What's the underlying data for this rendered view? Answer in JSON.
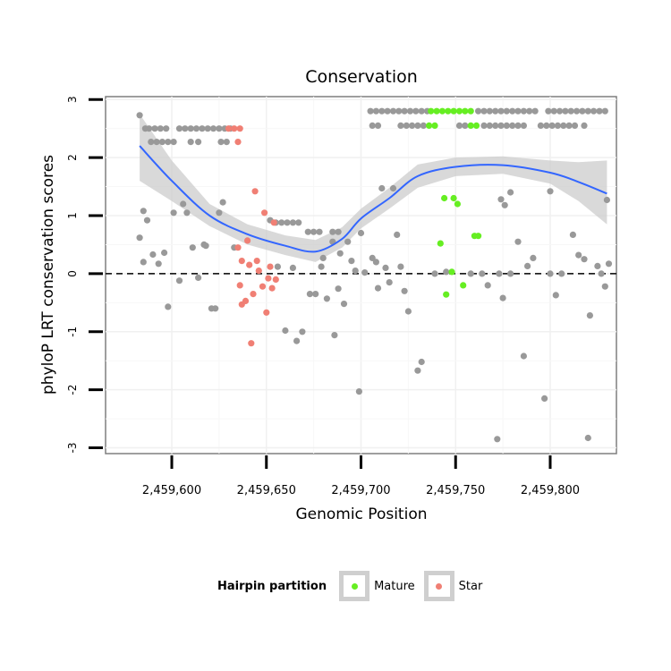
{
  "colors": {
    "other": "#999999",
    "mature": "#66ee22",
    "star": "#f07f74",
    "smooth": "#3366ff",
    "band": "#cccccc"
  },
  "chart_data": {
    "type": "scatter",
    "title": "Conservation",
    "xlabel": "Genomic Position",
    "ylabel": "phyloP LRT conservation scores",
    "xlim": [
      2459565,
      2459835
    ],
    "ylim": [
      -3.1,
      3.05
    ],
    "xticks": [
      2459600,
      2459650,
      2459700,
      2459750,
      2459800
    ],
    "xtick_labels": [
      "2,459,600",
      "2,459,650",
      "2,459,700",
      "2,459,750",
      "2,459,800"
    ],
    "yticks": [
      3,
      2,
      1,
      0,
      -1,
      -2,
      -3
    ],
    "ytick_labels": [
      "3",
      "2",
      "1",
      "0",
      "-1",
      "-2",
      "-3"
    ],
    "reference_line": 0,
    "legend": {
      "title": "Hairpin partition",
      "items": [
        {
          "label": "Mature",
          "color": "#66ee22"
        },
        {
          "label": "Star",
          "color": "#f07f74"
        }
      ]
    },
    "smooth": {
      "x": [
        2459583,
        2459600,
        2459620,
        2459640,
        2459660,
        2459676,
        2459690,
        2459700,
        2459715,
        2459730,
        2459750,
        2459775,
        2459800,
        2459815,
        2459830
      ],
      "y": [
        2.2,
        1.6,
        1.0,
        0.68,
        0.48,
        0.38,
        0.6,
        0.95,
        1.3,
        1.68,
        1.84,
        1.87,
        1.74,
        1.58,
        1.38
      ],
      "lower": [
        1.6,
        1.25,
        0.82,
        0.5,
        0.32,
        0.2,
        0.45,
        0.78,
        1.12,
        1.48,
        1.68,
        1.72,
        1.55,
        1.25,
        0.85
      ],
      "upper": [
        2.75,
        1.95,
        1.2,
        0.85,
        0.66,
        0.58,
        0.8,
        1.12,
        1.48,
        1.88,
        2.0,
        2.02,
        1.95,
        1.92,
        1.95
      ]
    },
    "series": [
      {
        "name": "Other",
        "points": [
          [
            2459583,
            2.73
          ],
          [
            2459586,
            2.5
          ],
          [
            2459588,
            2.5
          ],
          [
            2459591,
            2.5
          ],
          [
            2459594,
            2.5
          ],
          [
            2459597,
            2.5
          ],
          [
            2459589,
            2.27
          ],
          [
            2459592,
            2.27
          ],
          [
            2459595,
            2.27
          ],
          [
            2459598,
            2.27
          ],
          [
            2459601,
            2.27
          ],
          [
            2459604,
            2.5
          ],
          [
            2459607,
            2.5
          ],
          [
            2459610,
            2.5
          ],
          [
            2459613,
            2.5
          ],
          [
            2459616,
            2.5
          ],
          [
            2459619,
            2.5
          ],
          [
            2459622,
            2.5
          ],
          [
            2459625,
            2.5
          ],
          [
            2459628,
            2.5
          ],
          [
            2459631,
            2.5
          ],
          [
            2459610,
            2.27
          ],
          [
            2459614,
            2.27
          ],
          [
            2459626,
            2.27
          ],
          [
            2459629,
            2.27
          ],
          [
            2459705,
            2.8
          ],
          [
            2459708,
            2.8
          ],
          [
            2459711,
            2.8
          ],
          [
            2459714,
            2.8
          ],
          [
            2459717,
            2.8
          ],
          [
            2459720,
            2.8
          ],
          [
            2459723,
            2.8
          ],
          [
            2459726,
            2.8
          ],
          [
            2459729,
            2.8
          ],
          [
            2459732,
            2.8
          ],
          [
            2459735,
            2.8
          ],
          [
            2459762,
            2.8
          ],
          [
            2459765,
            2.8
          ],
          [
            2459768,
            2.8
          ],
          [
            2459771,
            2.8
          ],
          [
            2459774,
            2.8
          ],
          [
            2459777,
            2.8
          ],
          [
            2459780,
            2.8
          ],
          [
            2459783,
            2.8
          ],
          [
            2459786,
            2.8
          ],
          [
            2459789,
            2.8
          ],
          [
            2459792,
            2.8
          ],
          [
            2459799,
            2.8
          ],
          [
            2459802,
            2.8
          ],
          [
            2459805,
            2.8
          ],
          [
            2459808,
            2.8
          ],
          [
            2459811,
            2.8
          ],
          [
            2459814,
            2.8
          ],
          [
            2459817,
            2.8
          ],
          [
            2459820,
            2.8
          ],
          [
            2459823,
            2.8
          ],
          [
            2459826,
            2.8
          ],
          [
            2459829,
            2.8
          ],
          [
            2459706,
            2.55
          ],
          [
            2459709,
            2.55
          ],
          [
            2459721,
            2.55
          ],
          [
            2459724,
            2.55
          ],
          [
            2459727,
            2.55
          ],
          [
            2459730,
            2.55
          ],
          [
            2459733,
            2.55
          ],
          [
            2459752,
            2.55
          ],
          [
            2459755,
            2.55
          ],
          [
            2459765,
            2.55
          ],
          [
            2459768,
            2.55
          ],
          [
            2459771,
            2.55
          ],
          [
            2459774,
            2.55
          ],
          [
            2459777,
            2.55
          ],
          [
            2459780,
            2.55
          ],
          [
            2459783,
            2.55
          ],
          [
            2459786,
            2.55
          ],
          [
            2459795,
            2.55
          ],
          [
            2459798,
            2.55
          ],
          [
            2459801,
            2.55
          ],
          [
            2459804,
            2.55
          ],
          [
            2459807,
            2.55
          ],
          [
            2459810,
            2.55
          ],
          [
            2459813,
            2.55
          ],
          [
            2459818,
            2.55
          ],
          [
            2459583,
            0.62
          ],
          [
            2459585,
            1.08
          ],
          [
            2459587,
            0.92
          ],
          [
            2459585,
            0.2
          ],
          [
            2459590,
            0.33
          ],
          [
            2459593,
            0.17
          ],
          [
            2459596,
            0.36
          ],
          [
            2459598,
            -0.57
          ],
          [
            2459601,
            1.05
          ],
          [
            2459604,
            -0.12
          ],
          [
            2459606,
            1.2
          ],
          [
            2459608,
            1.05
          ],
          [
            2459611,
            0.45
          ],
          [
            2459614,
            -0.07
          ],
          [
            2459617,
            0.5
          ],
          [
            2459618,
            0.48
          ],
          [
            2459621,
            -0.6
          ],
          [
            2459623,
            -0.6
          ],
          [
            2459625,
            1.05
          ],
          [
            2459627,
            1.23
          ],
          [
            2459633,
            0.45
          ],
          [
            2459652,
            0.92
          ],
          [
            2459655,
            0.88
          ],
          [
            2459658,
            0.88
          ],
          [
            2459661,
            0.88
          ],
          [
            2459664,
            0.88
          ],
          [
            2459667,
            0.88
          ],
          [
            2459672,
            0.72
          ],
          [
            2459675,
            0.72
          ],
          [
            2459678,
            0.72
          ],
          [
            2459685,
            0.72
          ],
          [
            2459688,
            0.72
          ],
          [
            2459656,
            0.12
          ],
          [
            2459660,
            -0.98
          ],
          [
            2459664,
            0.1
          ],
          [
            2459666,
            -1.16
          ],
          [
            2459669,
            -1.0
          ],
          [
            2459673,
            -0.35
          ],
          [
            2459676,
            -0.35
          ],
          [
            2459679,
            0.12
          ],
          [
            2459680,
            0.27
          ],
          [
            2459682,
            -0.43
          ],
          [
            2459685,
            0.55
          ],
          [
            2459686,
            -1.06
          ],
          [
            2459688,
            -0.26
          ],
          [
            2459689,
            0.35
          ],
          [
            2459691,
            -0.52
          ],
          [
            2459693,
            0.55
          ],
          [
            2459695,
            0.22
          ],
          [
            2459697,
            0.05
          ],
          [
            2459699,
            -2.03
          ],
          [
            2459700,
            0.7
          ],
          [
            2459702,
            0.02
          ],
          [
            2459706,
            0.27
          ],
          [
            2459708,
            0.2
          ],
          [
            2459709,
            -0.25
          ],
          [
            2459711,
            1.47
          ],
          [
            2459713,
            0.1
          ],
          [
            2459715,
            -0.15
          ],
          [
            2459717,
            1.47
          ],
          [
            2459719,
            0.67
          ],
          [
            2459721,
            0.12
          ],
          [
            2459723,
            -0.3
          ],
          [
            2459725,
            -0.65
          ],
          [
            2459730,
            -1.67
          ],
          [
            2459732,
            -1.52
          ],
          [
            2459739,
            0.0
          ],
          [
            2459745,
            0.03
          ],
          [
            2459758,
            0.0
          ],
          [
            2459764,
            0.0
          ],
          [
            2459767,
            -0.2
          ],
          [
            2459772,
            -2.85
          ],
          [
            2459773,
            0.0
          ],
          [
            2459775,
            -0.42
          ],
          [
            2459774,
            1.28
          ],
          [
            2459776,
            1.18
          ],
          [
            2459779,
            1.4
          ],
          [
            2459779,
            0.0
          ],
          [
            2459783,
            0.55
          ],
          [
            2459786,
            -1.42
          ],
          [
            2459788,
            0.13
          ],
          [
            2459791,
            0.27
          ],
          [
            2459797,
            -2.15
          ],
          [
            2459800,
            1.42
          ],
          [
            2459800,
            0.0
          ],
          [
            2459803,
            -0.37
          ],
          [
            2459806,
            0.0
          ],
          [
            2459812,
            0.67
          ],
          [
            2459815,
            0.32
          ],
          [
            2459818,
            0.25
          ],
          [
            2459820,
            -2.83
          ],
          [
            2459821,
            -0.72
          ],
          [
            2459825,
            0.13
          ],
          [
            2459827,
            0.0
          ],
          [
            2459829,
            -0.22
          ],
          [
            2459830,
            1.27
          ],
          [
            2459831,
            0.17
          ]
        ]
      },
      {
        "name": "Mature",
        "points": [
          [
            2459737,
            2.8
          ],
          [
            2459740,
            2.8
          ],
          [
            2459743,
            2.8
          ],
          [
            2459746,
            2.8
          ],
          [
            2459749,
            2.8
          ],
          [
            2459752,
            2.8
          ],
          [
            2459755,
            2.8
          ],
          [
            2459758,
            2.8
          ],
          [
            2459736,
            2.55
          ],
          [
            2459739,
            2.55
          ],
          [
            2459758,
            2.55
          ],
          [
            2459761,
            2.55
          ],
          [
            2459742,
            0.52
          ],
          [
            2459744,
            1.3
          ],
          [
            2459745,
            -0.36
          ],
          [
            2459748,
            0.03
          ],
          [
            2459749,
            1.3
          ],
          [
            2459751,
            1.2
          ],
          [
            2459754,
            -0.2
          ],
          [
            2459760,
            0.65
          ],
          [
            2459762,
            0.65
          ]
        ]
      },
      {
        "name": "Star",
        "points": [
          [
            2459630,
            2.5
          ],
          [
            2459633,
            2.5
          ],
          [
            2459636,
            2.5
          ],
          [
            2459635,
            2.27
          ],
          [
            2459635,
            0.45
          ],
          [
            2459637,
            0.22
          ],
          [
            2459636,
            -0.2
          ],
          [
            2459637,
            -0.53
          ],
          [
            2459639,
            -0.47
          ],
          [
            2459640,
            0.57
          ],
          [
            2459641,
            0.15
          ],
          [
            2459642,
            -1.2
          ],
          [
            2459643,
            -0.35
          ],
          [
            2459644,
            1.42
          ],
          [
            2459645,
            0.22
          ],
          [
            2459646,
            0.05
          ],
          [
            2459648,
            -0.22
          ],
          [
            2459649,
            1.05
          ],
          [
            2459650,
            -0.67
          ],
          [
            2459651,
            -0.08
          ],
          [
            2459652,
            0.12
          ],
          [
            2459653,
            -0.25
          ],
          [
            2459654,
            0.88
          ],
          [
            2459655,
            -0.1
          ]
        ]
      }
    ]
  }
}
